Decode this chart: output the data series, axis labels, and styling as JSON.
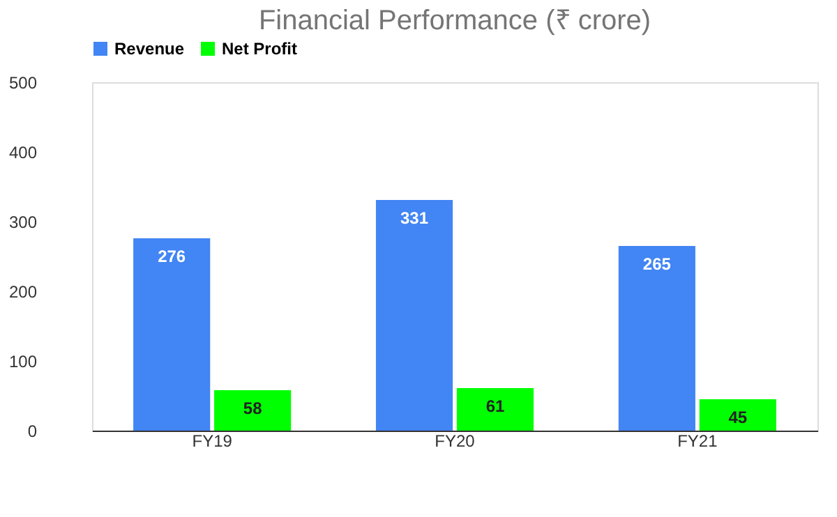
{
  "chart_data": {
    "type": "bar",
    "title": "Financial Performance (₹ crore)",
    "categories": [
      "FY19",
      "FY20",
      "FY21"
    ],
    "series": [
      {
        "name": "Revenue",
        "color": "#4285f4",
        "values": [
          276,
          331,
          265
        ]
      },
      {
        "name": "Net Profit",
        "color": "#00ff00",
        "values": [
          58,
          61,
          45
        ]
      }
    ],
    "ylim": [
      0,
      500
    ],
    "yticks": [
      0,
      100,
      200,
      300,
      400,
      500
    ],
    "grid": false,
    "legend": "top",
    "data_labels": true
  }
}
